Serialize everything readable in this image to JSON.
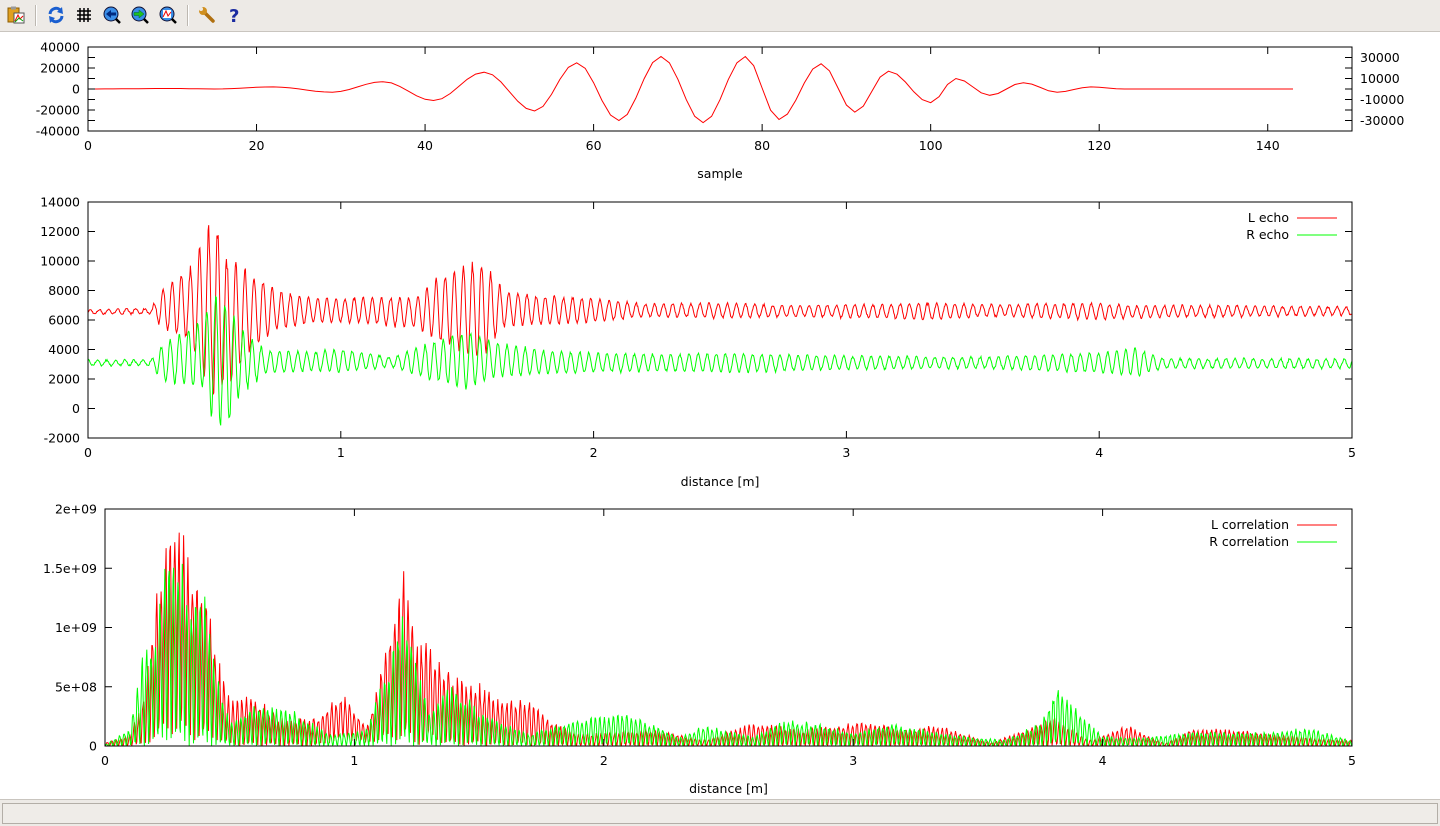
{
  "toolbar": {
    "items": [
      {
        "icon": "copy-to-clipboard-icon",
        "label": "Copy to clipboard"
      },
      {
        "icon": "replot-icon",
        "label": "Replot"
      },
      {
        "icon": "grid-icon",
        "label": "Toggle grid"
      },
      {
        "icon": "zoom-previous-icon",
        "label": "Previous zoom"
      },
      {
        "icon": "zoom-next-icon",
        "label": "Next zoom"
      },
      {
        "icon": "autoscale-icon",
        "label": "Autoscale"
      },
      {
        "icon": "options-wrench-icon",
        "label": "Options"
      },
      {
        "icon": "help-icon",
        "label": "Help"
      }
    ]
  },
  "status_bar": {
    "text": ""
  },
  "chart_data": [
    {
      "type": "line",
      "xlabel": "sample",
      "ylabel": "",
      "xlim": [
        0,
        150
      ],
      "ylim": [
        -40000,
        40000
      ],
      "xticks": [
        "0",
        "20",
        "40",
        "60",
        "80",
        "100",
        "120",
        "140"
      ],
      "yticks": [
        "-40000",
        "-30000",
        "-20000",
        "-10000",
        "0",
        "10000",
        "20000",
        "30000",
        "40000"
      ],
      "legend": null,
      "series": [
        {
          "color": "#ff0000",
          "x": [
            0,
            10,
            15,
            22,
            29,
            35,
            41,
            47,
            53,
            58,
            63,
            68,
            73,
            78,
            82,
            87,
            91,
            95,
            100,
            103,
            107,
            111,
            115,
            119,
            123,
            143
          ],
          "y": [
            0,
            500,
            0,
            2000,
            -3000,
            7000,
            -11000,
            16000,
            -21000,
            25000,
            -30000,
            31000,
            -32000,
            31000,
            -29000,
            24000,
            -22000,
            17000,
            -13000,
            10000,
            -6000,
            6000,
            -3000,
            2000,
            0,
            0
          ]
        }
      ]
    },
    {
      "type": "line",
      "xlabel": "distance [m]",
      "ylabel": "",
      "xlim": [
        0,
        5
      ],
      "ylim": [
        -2000,
        14000
      ],
      "xticks": [
        "0",
        "1",
        "2",
        "3",
        "4",
        "5"
      ],
      "yticks": [
        "-2000",
        "0",
        "2000",
        "4000",
        "6000",
        "8000",
        "10000",
        "12000",
        "14000"
      ],
      "legend": "top-right",
      "series": [
        {
          "name": "L echo",
          "color": "#ff0000",
          "envelope_x": [
            0,
            0.25,
            0.3,
            0.4,
            0.5,
            0.55,
            0.65,
            0.75,
            0.9,
            1.1,
            1.3,
            1.4,
            1.55,
            1.65,
            1.8,
            2.0,
            2.2,
            2.5,
            2.8,
            3.1,
            3.3,
            3.6,
            4.0,
            4.1,
            4.5,
            5
          ],
          "min": [
            6400,
            6400,
            5200,
            4600,
            0,
            1000,
            4000,
            5300,
            5800,
            5700,
            5400,
            4300,
            3100,
            5500,
            5600,
            5800,
            6200,
            6100,
            6200,
            6100,
            6000,
            6200,
            6000,
            6100,
            6200,
            6300
          ],
          "max": [
            6700,
            6800,
            8400,
            9500,
            13400,
            10500,
            9300,
            8000,
            7500,
            7600,
            7600,
            9200,
            10300,
            8000,
            7700,
            7500,
            7100,
            7200,
            7000,
            7100,
            7200,
            7100,
            7200,
            7000,
            7000,
            6900
          ]
        },
        {
          "name": "R echo",
          "color": "#00ff00",
          "envelope_x": [
            0,
            0.25,
            0.3,
            0.45,
            0.5,
            0.55,
            0.6,
            0.7,
            0.9,
            1.0,
            1.2,
            1.35,
            1.5,
            1.6,
            1.8,
            2.0,
            2.3,
            2.5,
            3.0,
            3.5,
            4.0,
            4.15,
            4.25,
            5
          ],
          "min": [
            2900,
            2900,
            1700,
            1200,
            -1300,
            -1900,
            800,
            2300,
            2500,
            2400,
            2800,
            1900,
            1200,
            2000,
            2300,
            2400,
            2500,
            2400,
            2600,
            2700,
            2400,
            2100,
            2700,
            2700
          ],
          "max": [
            3300,
            3300,
            4500,
            6100,
            8300,
            7600,
            5500,
            4000,
            3900,
            4100,
            3500,
            4500,
            5400,
            4600,
            4000,
            3800,
            3700,
            3800,
            3600,
            3500,
            3800,
            4200,
            3400,
            3400
          ]
        }
      ]
    },
    {
      "type": "line",
      "xlabel": "distance [m]",
      "ylabel": "",
      "xlim": [
        0,
        5
      ],
      "ylim": [
        0,
        2000000000
      ],
      "xticks": [
        "0",
        "1",
        "2",
        "3",
        "4",
        "5"
      ],
      "yticks": [
        "0",
        "5e+08",
        "1e+09",
        "1.5e+09",
        "2e+09"
      ],
      "legend": "top-right",
      "series": [
        {
          "name": "L correlation",
          "color": "#ff0000",
          "envelope_x": [
            0,
            0.1,
            0.15,
            0.2,
            0.25,
            0.3,
            0.35,
            0.4,
            0.45,
            0.5,
            0.6,
            0.7,
            0.85,
            0.95,
            1.05,
            1.15,
            1.2,
            1.25,
            1.3,
            1.4,
            1.5,
            1.6,
            1.7,
            1.8,
            1.9,
            2.2,
            2.4,
            2.6,
            2.8,
            3.05,
            3.2,
            3.35,
            3.55,
            3.7,
            3.8,
            3.95,
            4.1,
            4.25,
            4.35,
            4.5,
            4.8,
            5
          ],
          "min": [
            0,
            0,
            0,
            50000000.0,
            100000000.0,
            100000000.0,
            50000000.0,
            50000000.0,
            50000000.0,
            0,
            0,
            0,
            0,
            50000000.0,
            30000000.0,
            50000000.0,
            50000000.0,
            0,
            50000000.0,
            0,
            0,
            0,
            0,
            0,
            0,
            0,
            0,
            0,
            0,
            0,
            0,
            0,
            0,
            0,
            0,
            0,
            0,
            0,
            0,
            0,
            0,
            0
          ],
          "max": [
            30000000.0,
            100000000.0,
            400000000.0,
            1200000000.0,
            2000000000.0,
            2000000000.0,
            1600000000.0,
            1500000000.0,
            800000000.0,
            400000000.0,
            440000000.0,
            250000000.0,
            250000000.0,
            470000000.0,
            150000000.0,
            1100000000.0,
            1700000000.0,
            900000000.0,
            900000000.0,
            600000000.0,
            550000000.0,
            400000000.0,
            400000000.0,
            200000000.0,
            100000000.0,
            150000000.0,
            50000000.0,
            200000000.0,
            150000000.0,
            220000000.0,
            150000000.0,
            180000000.0,
            30000000.0,
            150000000.0,
            250000000.0,
            50000000.0,
            180000000.0,
            20000000.0,
            140000000.0,
            150000000.0,
            80000000.0,
            50000000.0
          ]
        },
        {
          "name": "R correlation",
          "color": "#00ff00",
          "envelope_x": [
            0,
            0.1,
            0.15,
            0.2,
            0.25,
            0.3,
            0.35,
            0.4,
            0.45,
            0.5,
            0.6,
            0.75,
            0.9,
            1.05,
            1.15,
            1.2,
            1.3,
            1.4,
            1.5,
            1.7,
            1.9,
            2.1,
            2.3,
            2.4,
            2.6,
            2.75,
            3.0,
            3.15,
            3.4,
            3.6,
            3.75,
            3.82,
            3.9,
            4.0,
            4.2,
            4.35,
            4.65,
            4.82,
            5
          ],
          "min": [
            0,
            0,
            0,
            0,
            50000000.0,
            0,
            0,
            0,
            0,
            0,
            0,
            0,
            0,
            0,
            0,
            0,
            0,
            0,
            0,
            0,
            0,
            0,
            0,
            0,
            0,
            0,
            0,
            0,
            0,
            0,
            0,
            0,
            0,
            0,
            0,
            0,
            0,
            0,
            0
          ],
          "max": [
            10000000.0,
            150000000.0,
            800000000.0,
            1000000000.0,
            1800000000.0,
            1700000000.0,
            1300000000.0,
            1300000000.0,
            600000000.0,
            200000000.0,
            350000000.0,
            320000000.0,
            100000000.0,
            150000000.0,
            800000000.0,
            1200000000.0,
            300000000.0,
            550000000.0,
            300000000.0,
            100000000.0,
            250000000.0,
            300000000.0,
            80000000.0,
            180000000.0,
            80000000.0,
            250000000.0,
            120000000.0,
            200000000.0,
            100000000.0,
            50000000.0,
            200000000.0,
            550000000.0,
            300000000.0,
            80000000.0,
            80000000.0,
            120000000.0,
            120000000.0,
            160000000.0,
            50000000.0
          ]
        }
      ]
    }
  ]
}
